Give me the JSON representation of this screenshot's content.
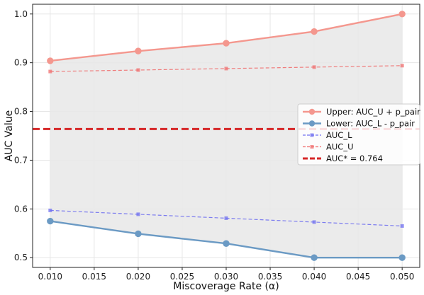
{
  "chart_data": {
    "type": "line",
    "title": "",
    "xlabel": "Miscoverage Rate (α)",
    "ylabel": "AUC Value",
    "x": [
      0.01,
      0.02,
      0.03,
      0.04,
      0.05
    ],
    "xlim": [
      0.008,
      0.052
    ],
    "ylim": [
      0.48,
      1.02
    ],
    "xticks": [
      0.01,
      0.015,
      0.02,
      0.025,
      0.03,
      0.035,
      0.04,
      0.045,
      0.05
    ],
    "yticks": [
      0.5,
      0.6,
      0.7,
      0.8,
      0.9,
      1.0
    ],
    "xtick_labels": [
      "0.010",
      "0.015",
      "0.020",
      "0.025",
      "0.030",
      "0.035",
      "0.040",
      "0.045",
      "0.050"
    ],
    "ytick_labels": [
      "0.5",
      "0.6",
      "0.7",
      "0.8",
      "0.9",
      "1.0"
    ],
    "grid": true,
    "legend_position": "center-right",
    "shaded_region": {
      "between": [
        "Upper: AUC_U + p_pair",
        "Lower: AUC_L - p_pair"
      ],
      "color": "#e8e8e8"
    },
    "series": [
      {
        "name": "Upper: AUC_U + p_pair",
        "values": [
          0.904,
          0.924,
          0.94,
          0.964,
          1.0
        ],
        "color": "#f4978e",
        "style": "solid",
        "marker": "circle"
      },
      {
        "name": "Lower: AUC_L - p_pair",
        "values": [
          0.575,
          0.549,
          0.529,
          0.5,
          0.5
        ],
        "color": "#6b9ac4",
        "style": "solid",
        "marker": "circle"
      },
      {
        "name": "AUC_L",
        "values": [
          0.597,
          0.589,
          0.581,
          0.573,
          0.565
        ],
        "color": "#7070f0",
        "style": "dashed",
        "marker": "square"
      },
      {
        "name": "AUC_U",
        "values": [
          0.882,
          0.885,
          0.888,
          0.891,
          0.894
        ],
        "color": "#f07070",
        "style": "dashed",
        "marker": "square"
      }
    ],
    "hlines": [
      {
        "name": "AUC* = 0.764",
        "value": 0.764,
        "color": "#d62728",
        "style": "dashed"
      }
    ]
  }
}
